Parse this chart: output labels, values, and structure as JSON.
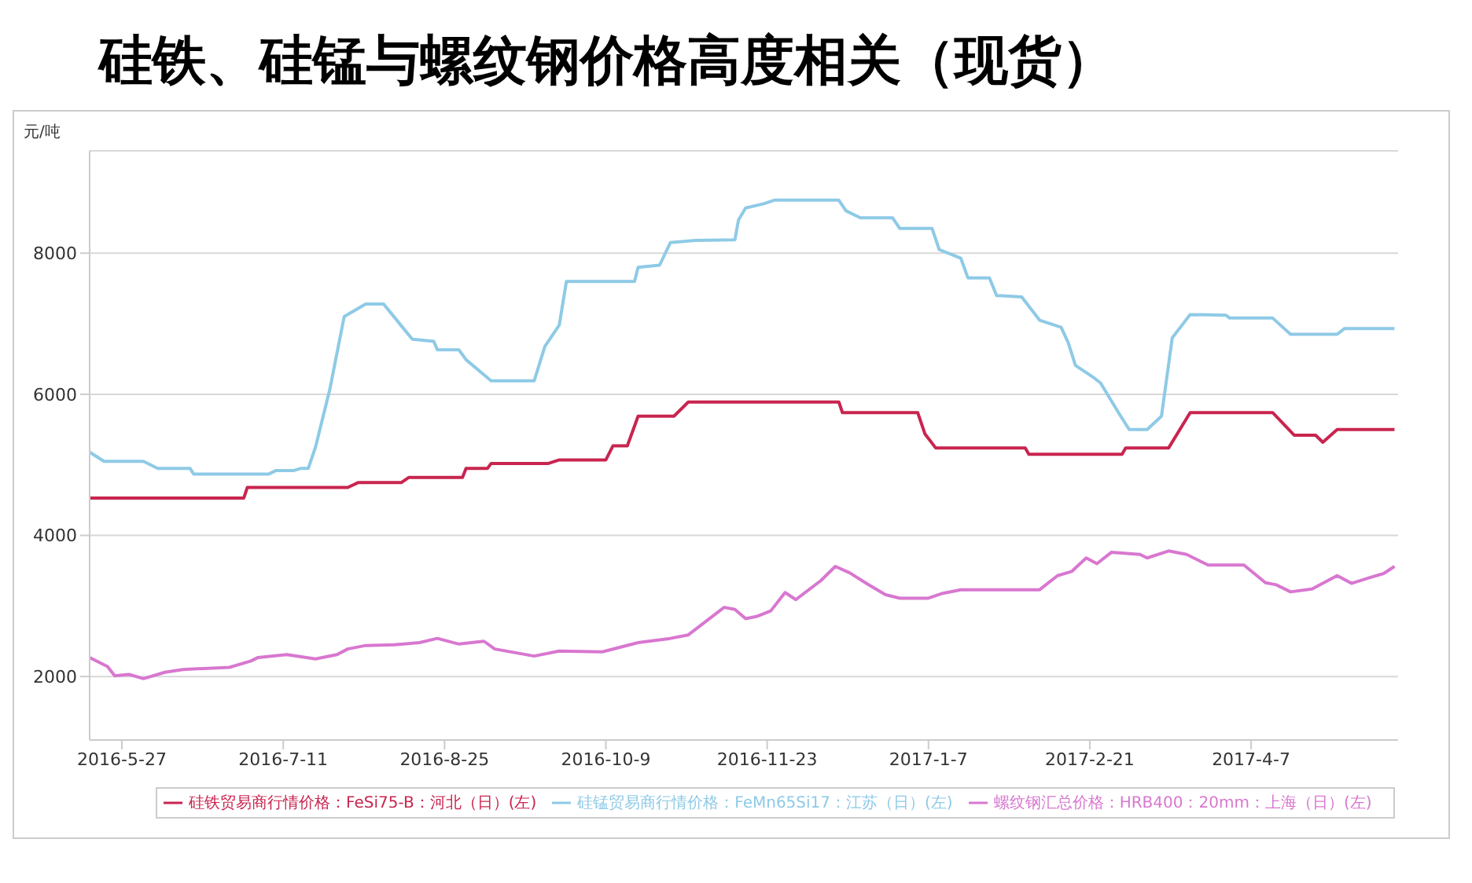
{
  "chart_data": {
    "type": "line",
    "title": "硅铁、硅锰与螺纹钢价格高度相关（现货）",
    "ylabel": "元/吨",
    "xlim": [
      "2016-05-18",
      "2017-05-18"
    ],
    "ylim": [
      1100,
      9450
    ],
    "yticks": [
      2000,
      4000,
      6000,
      8000
    ],
    "xticks": [
      {
        "value": "2016-05-27",
        "label": "2016-5-27"
      },
      {
        "value": "2016-07-11",
        "label": "2016-7-11"
      },
      {
        "value": "2016-08-25",
        "label": "2016-8-25"
      },
      {
        "value": "2016-10-09",
        "label": "2016-10-9"
      },
      {
        "value": "2016-11-23",
        "label": "2016-11-23"
      },
      {
        "value": "2017-01-07",
        "label": "2017-1-7"
      },
      {
        "value": "2017-02-21",
        "label": "2017-2-21"
      },
      {
        "value": "2017-04-07",
        "label": "2017-4-7"
      }
    ],
    "grid": "y",
    "legend": "bottom",
    "marker": "none",
    "line_style": "solid",
    "series": [
      {
        "name": "螺纹钢汇总价格：HRB400：20mm：上海（日）(左)",
        "color": "#d877d0",
        "x": [
          "2016-05-18",
          "2016-05-23",
          "2016-05-25",
          "2016-05-29",
          "2016-06-02",
          "2016-06-08",
          "2016-06-13",
          "2016-06-26",
          "2016-07-02",
          "2016-07-04",
          "2016-07-12",
          "2016-07-20",
          "2016-07-26",
          "2016-07-29",
          "2016-08-03",
          "2016-08-11",
          "2016-08-18",
          "2016-08-23",
          "2016-08-29",
          "2016-09-05",
          "2016-09-08",
          "2016-09-19",
          "2016-09-26",
          "2016-10-08",
          "2016-10-18",
          "2016-10-27",
          "2016-11-01",
          "2016-11-11",
          "2016-11-14",
          "2016-11-17",
          "2016-11-20",
          "2016-11-24",
          "2016-11-28",
          "2016-12-01",
          "2016-12-08",
          "2016-12-12",
          "2016-12-16",
          "2016-12-21",
          "2016-12-26",
          "2016-12-30",
          "2017-01-07",
          "2017-01-11",
          "2017-01-16",
          "2017-02-07",
          "2017-02-12",
          "2017-02-16",
          "2017-02-20",
          "2017-02-23",
          "2017-02-27",
          "2017-03-07",
          "2017-03-09",
          "2017-03-15",
          "2017-03-20",
          "2017-03-26",
          "2017-04-05",
          "2017-04-11",
          "2017-04-14",
          "2017-04-18",
          "2017-04-24",
          "2017-05-01",
          "2017-05-05",
          "2017-05-10",
          "2017-05-14",
          "2017-05-17"
        ],
        "values": [
          2270,
          2140,
          2010,
          2030,
          1970,
          2060,
          2100,
          2130,
          2220,
          2270,
          2310,
          2250,
          2310,
          2390,
          2440,
          2450,
          2480,
          2540,
          2460,
          2500,
          2390,
          2290,
          2360,
          2350,
          2480,
          2540,
          2590,
          2980,
          2950,
          2820,
          2850,
          2930,
          3190,
          3090,
          3360,
          3560,
          3470,
          3310,
          3160,
          3110,
          3110,
          3180,
          3230,
          3230,
          3430,
          3490,
          3680,
          3600,
          3760,
          3730,
          3680,
          3780,
          3730,
          3580,
          3580,
          3330,
          3300,
          3200,
          3240,
          3430,
          3320,
          3400,
          3460,
          3560
        ]
      },
      {
        "name": "硅锰贸易商行情价格：FeMn65Si17：江苏（日）(左)",
        "color": "#8ecae6",
        "x": [
          "2016-05-18",
          "2016-05-22",
          "2016-06-02",
          "2016-06-06",
          "2016-06-15",
          "2016-06-16",
          "2016-07-07",
          "2016-07-09",
          "2016-07-14",
          "2016-07-16",
          "2016-07-18",
          "2016-07-20",
          "2016-07-24",
          "2016-07-28",
          "2016-08-03",
          "2016-08-08",
          "2016-08-12",
          "2016-08-16",
          "2016-08-22",
          "2016-08-23",
          "2016-08-29",
          "2016-08-31",
          "2016-09-07",
          "2016-09-19",
          "2016-09-22",
          "2016-09-26",
          "2016-09-28",
          "2016-10-17",
          "2016-10-18",
          "2016-10-24",
          "2016-10-27",
          "2016-11-03",
          "2016-11-14",
          "2016-11-15",
          "2016-11-17",
          "2016-11-22",
          "2016-11-25",
          "2016-12-13",
          "2016-12-15",
          "2016-12-19",
          "2016-12-28",
          "2016-12-30",
          "2017-01-08",
          "2017-01-10",
          "2017-01-16",
          "2017-01-18",
          "2017-01-24",
          "2017-01-26",
          "2017-02-02",
          "2017-02-07",
          "2017-02-13",
          "2017-02-15",
          "2017-02-17",
          "2017-02-22",
          "2017-02-24",
          "2017-03-01",
          "2017-03-04",
          "2017-03-09",
          "2017-03-13",
          "2017-03-14",
          "2017-03-16",
          "2017-03-21",
          "2017-03-31",
          "2017-04-01",
          "2017-04-13",
          "2017-04-18",
          "2017-05-01",
          "2017-05-03",
          "2017-05-17"
        ],
        "values": [
          5180,
          5050,
          5050,
          4950,
          4950,
          4870,
          4870,
          4920,
          4920,
          4950,
          4950,
          5250,
          6070,
          7100,
          7280,
          7280,
          7030,
          6780,
          6750,
          6630,
          6630,
          6490,
          6190,
          6190,
          6680,
          6980,
          7600,
          7600,
          7800,
          7830,
          8150,
          8180,
          8190,
          8470,
          8640,
          8700,
          8750,
          8750,
          8600,
          8500,
          8500,
          8350,
          8350,
          8050,
          7930,
          7650,
          7650,
          7400,
          7380,
          7050,
          6950,
          6730,
          6410,
          6240,
          6160,
          5740,
          5500,
          5500,
          5690,
          6060,
          6800,
          7130,
          7120,
          7080,
          7080,
          6850,
          6850,
          6930,
          6930
        ]
      },
      {
        "name": "硅铁贸易商行情价格：FeSi75-B：河北（日）(左)",
        "color": "#c8254f",
        "x": [
          "2016-05-18",
          "2016-06-30",
          "2016-07-01",
          "2016-07-29",
          "2016-08-01",
          "2016-08-13",
          "2016-08-15",
          "2016-08-30",
          "2016-08-31",
          "2016-09-06",
          "2016-09-07",
          "2016-09-23",
          "2016-09-26",
          "2016-10-09",
          "2016-10-11",
          "2016-10-15",
          "2016-10-18",
          "2016-10-28",
          "2016-11-01",
          "2016-12-13",
          "2016-12-14",
          "2017-01-04",
          "2017-01-06",
          "2017-01-09",
          "2017-02-03",
          "2017-02-04",
          "2017-03-02",
          "2017-03-03",
          "2017-03-15",
          "2017-03-21",
          "2017-04-13",
          "2017-04-19",
          "2017-04-25",
          "2017-04-27",
          "2017-05-01",
          "2017-05-17"
        ],
        "values": [
          4530,
          4530,
          4680,
          4680,
          4750,
          4750,
          4820,
          4820,
          4950,
          4950,
          5020,
          5020,
          5070,
          5070,
          5270,
          5270,
          5690,
          5690,
          5890,
          5890,
          5740,
          5740,
          5440,
          5240,
          5240,
          5150,
          5150,
          5240,
          5240,
          5740,
          5740,
          5420,
          5420,
          5320,
          5500,
          5500
        ]
      }
    ]
  }
}
